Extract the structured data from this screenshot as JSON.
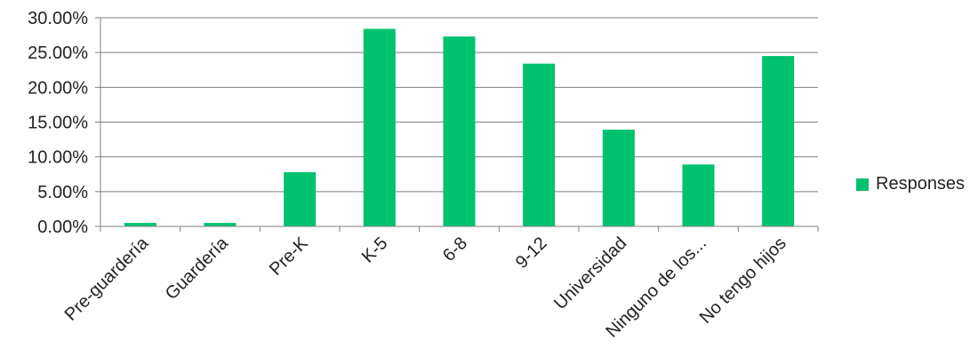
{
  "chart_data": {
    "type": "bar",
    "categories": [
      "Pre-guardería",
      "Guardería",
      "Pre-K",
      "K-5",
      "6-8",
      "9-12",
      "Universidad",
      "Ninguno de los...",
      "No tengo hijos"
    ],
    "series": [
      {
        "name": "Responses",
        "values": [
          0.5,
          0.5,
          7.8,
          28.4,
          27.3,
          23.4,
          13.9,
          8.9,
          24.5
        ]
      }
    ],
    "yticks": [
      "0.00%",
      "5.00%",
      "10.00%",
      "15.00%",
      "20.00%",
      "25.00%",
      "30.00%"
    ],
    "ylim": [
      0,
      30
    ],
    "grid": true,
    "legend_position": "right",
    "bar_color": "#00C16E",
    "axis_color": "#7F7F7F"
  }
}
